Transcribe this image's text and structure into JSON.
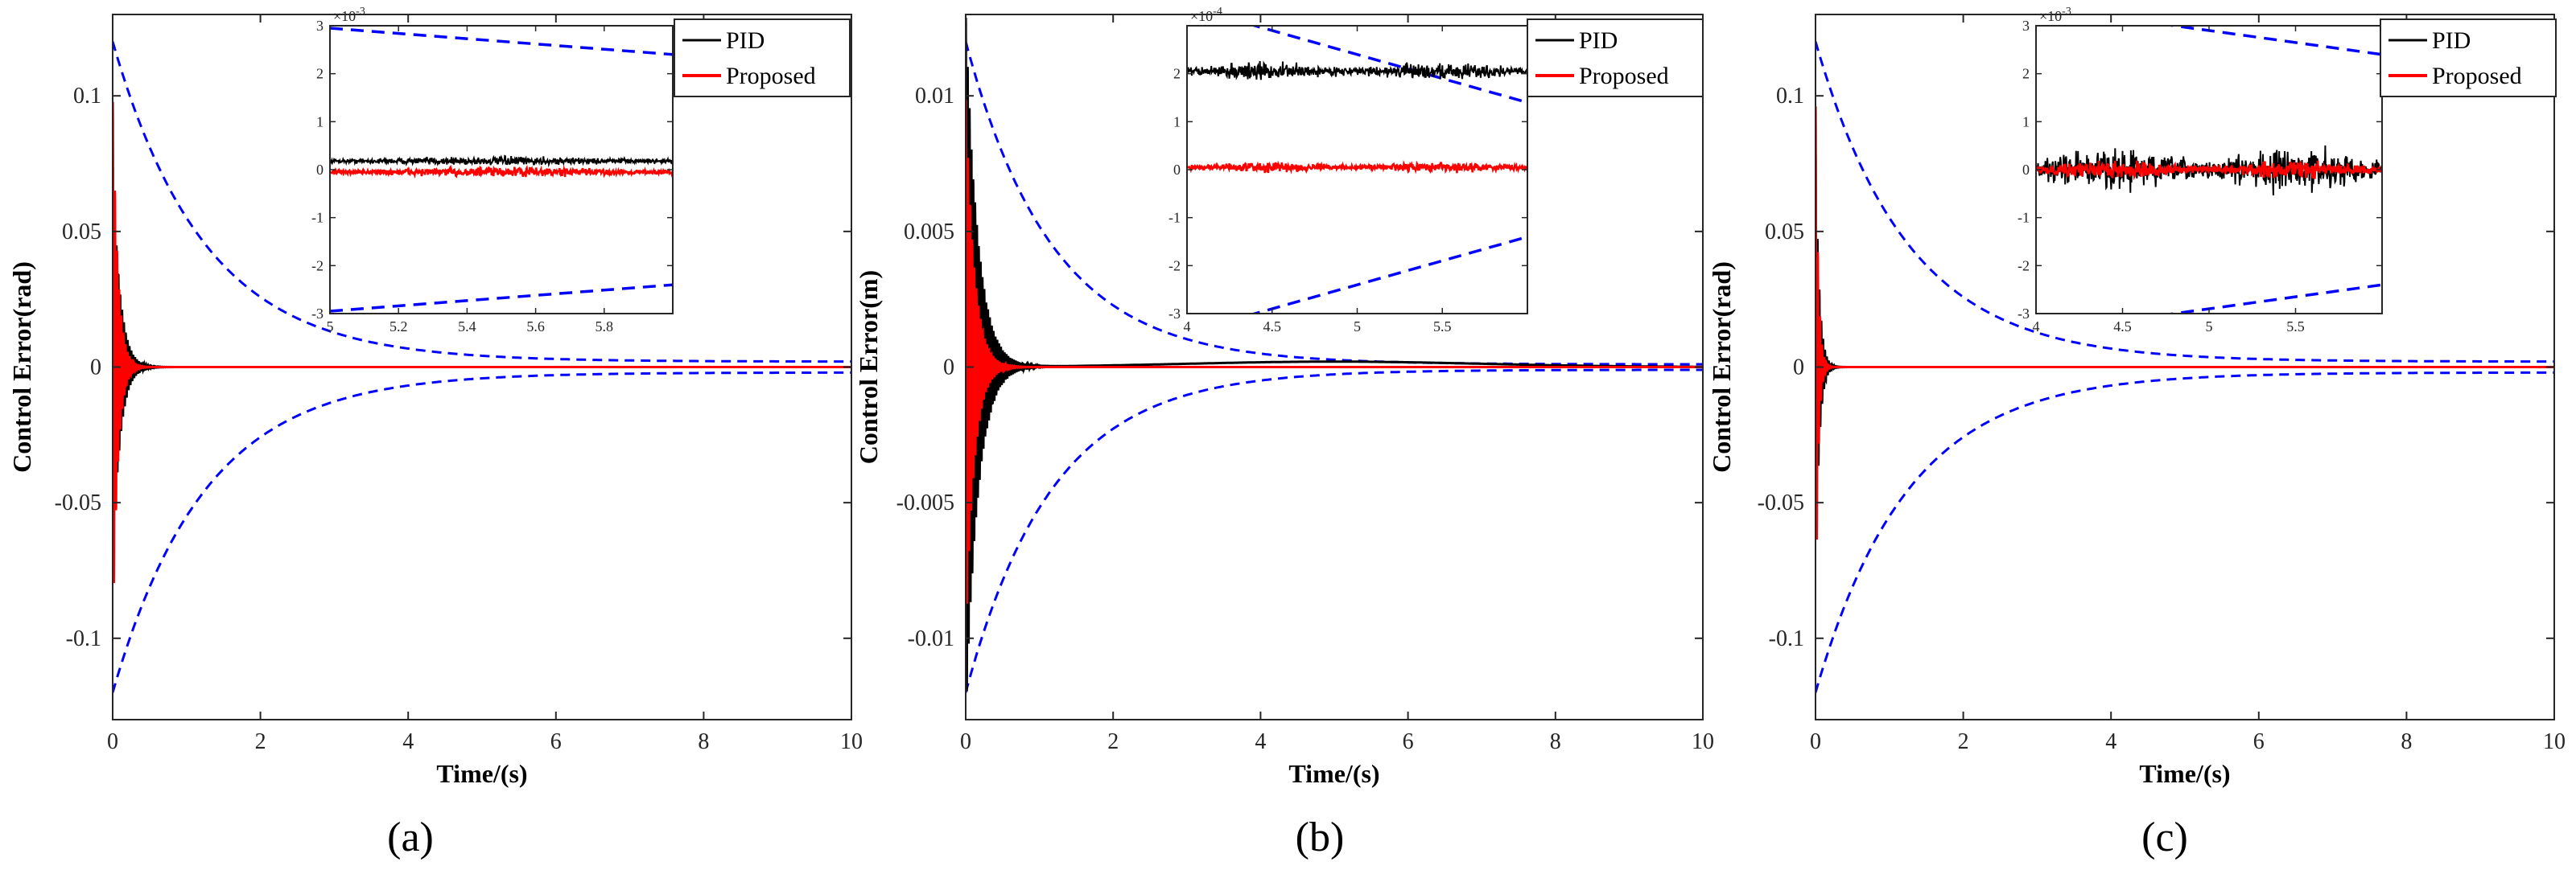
{
  "chart_data": [
    {
      "type": "line",
      "caption": "(a)",
      "xlabel": "Time/(s)",
      "ylabel": "Control Error(rad)",
      "xlim": [
        0,
        10
      ],
      "ylim": [
        -0.13,
        0.13
      ],
      "xticks": [
        0,
        2,
        4,
        6,
        8,
        10
      ],
      "xtick_labels": [
        "0",
        "2",
        "4",
        "6",
        "8",
        "10"
      ],
      "yticks": [
        -0.1,
        -0.05,
        0,
        0.05,
        0.1
      ],
      "ytick_labels": [
        "-0.1",
        "-0.05",
        "0",
        "0.05",
        "0.1"
      ],
      "bound": {
        "initial": 0.12,
        "final": 0.002,
        "decay": 0.8
      },
      "transient": {
        "pid_amp": 0.075,
        "proposed_amp": 0.1,
        "duration": 0.3
      },
      "legend": [
        "PID",
        "Proposed"
      ],
      "legend_position": "top-right",
      "series_colors": {
        "pid": "#000000",
        "proposed": "#ff0000",
        "bound": "#0000ff"
      },
      "inset": {
        "xlim": [
          5,
          6
        ],
        "ylim": [
          -3,
          3
        ],
        "xticks": [
          5,
          5.2,
          5.4,
          5.6,
          5.8
        ],
        "xtick_labels": [
          "5",
          "5.2",
          "5.4",
          "5.6",
          "5.8"
        ],
        "yticks": [
          -3,
          -2,
          -1,
          0,
          1,
          2,
          3
        ],
        "ytick_labels": [
          "-3",
          "-2",
          "-1",
          "0",
          "1",
          "2",
          "3"
        ],
        "exponent_base": "×10",
        "exponent_power": "-3",
        "pid": {
          "mean": 0.18,
          "noise": 0.09
        },
        "proposed": {
          "mean": -0.05,
          "noise": 0.1
        },
        "bound_upper": {
          "start": 2.95,
          "end": 2.4
        },
        "bound_lower": {
          "start": -2.95,
          "end": -2.4
        }
      }
    },
    {
      "type": "line",
      "caption": "(b)",
      "xlabel": "Time/(s)",
      "ylabel": "Control Error(m)",
      "xlim": [
        0,
        10
      ],
      "ylim": [
        -0.013,
        0.013
      ],
      "xticks": [
        0,
        2,
        4,
        6,
        8,
        10
      ],
      "xtick_labels": [
        "0",
        "2",
        "4",
        "6",
        "8",
        "10"
      ],
      "yticks": [
        -0.01,
        -0.005,
        0,
        0.005,
        0.01
      ],
      "ytick_labels": [
        "-0.01",
        "-0.005",
        "0",
        "0.005",
        "0.01"
      ],
      "bound": {
        "initial": 0.012,
        "final": 0.0001,
        "decay": 0.85
      },
      "transient": {
        "pid_amp": 0.013,
        "proposed_amp": 0.01,
        "duration": 0.5
      },
      "legend": [
        "PID",
        "Proposed"
      ],
      "legend_position": "top-right",
      "series_colors": {
        "pid": "#000000",
        "proposed": "#ff0000",
        "bound": "#0000ff"
      },
      "inset": {
        "xlim": [
          4,
          6
        ],
        "ylim": [
          -3,
          3
        ],
        "xticks": [
          4,
          4.5,
          5,
          5.5
        ],
        "xtick_labels": [
          "4",
          "4.5",
          "5",
          "5.5"
        ],
        "yticks": [
          -3,
          -2,
          -1,
          0,
          1,
          2
        ],
        "ytick_labels": [
          "-3",
          "-2",
          "-1",
          "0",
          "1",
          "2"
        ],
        "exponent_base": "×10",
        "exponent_power": "-4",
        "pid": {
          "mean": 2.05,
          "noise": 0.18
        },
        "proposed": {
          "mean": 0.05,
          "noise": 0.1
        },
        "bound_upper": {
          "start": 3.4,
          "end": 1.4
        },
        "bound_lower": {
          "start": -3.4,
          "end": -1.4
        }
      }
    },
    {
      "type": "line",
      "caption": "(c)",
      "xlabel": "Time/(s)",
      "ylabel": "Control Error(rad)",
      "xlim": [
        0,
        10
      ],
      "ylim": [
        -0.13,
        0.13
      ],
      "xticks": [
        0,
        2,
        4,
        6,
        8,
        10
      ],
      "xtick_labels": [
        "0",
        "2",
        "4",
        "6",
        "8",
        "10"
      ],
      "yticks": [
        -0.1,
        -0.05,
        0,
        0.05,
        0.1
      ],
      "ytick_labels": [
        "-0.1",
        "-0.05",
        "0",
        "0.05",
        "0.1"
      ],
      "bound": {
        "initial": 0.12,
        "final": 0.002,
        "decay": 0.8
      },
      "transient": {
        "pid_amp": 0.08,
        "proposed_amp": 0.1,
        "duration": 0.15
      },
      "legend": [
        "PID",
        "Proposed"
      ],
      "legend_position": "top-right",
      "series_colors": {
        "pid": "#000000",
        "proposed": "#ff0000",
        "bound": "#0000ff"
      },
      "inset": {
        "xlim": [
          4,
          6
        ],
        "ylim": [
          -3,
          3
        ],
        "xticks": [
          4,
          4.5,
          5,
          5.5
        ],
        "xtick_labels": [
          "4",
          "4.5",
          "5",
          "5.5"
        ],
        "yticks": [
          -3,
          -2,
          -1,
          0,
          1,
          2,
          3
        ],
        "ytick_labels": [
          "-3",
          "-2",
          "-1",
          "0",
          "1",
          "2",
          "3"
        ],
        "exponent_base": "×10",
        "exponent_power": "-3",
        "pid": {
          "mean": 0.0,
          "noise": 0.45
        },
        "proposed": {
          "mean": 0.0,
          "noise": 0.18
        },
        "bound_upper": {
          "start": 3.4,
          "end": 2.4
        },
        "bound_lower": {
          "start": -3.4,
          "end": -2.4
        }
      }
    }
  ]
}
